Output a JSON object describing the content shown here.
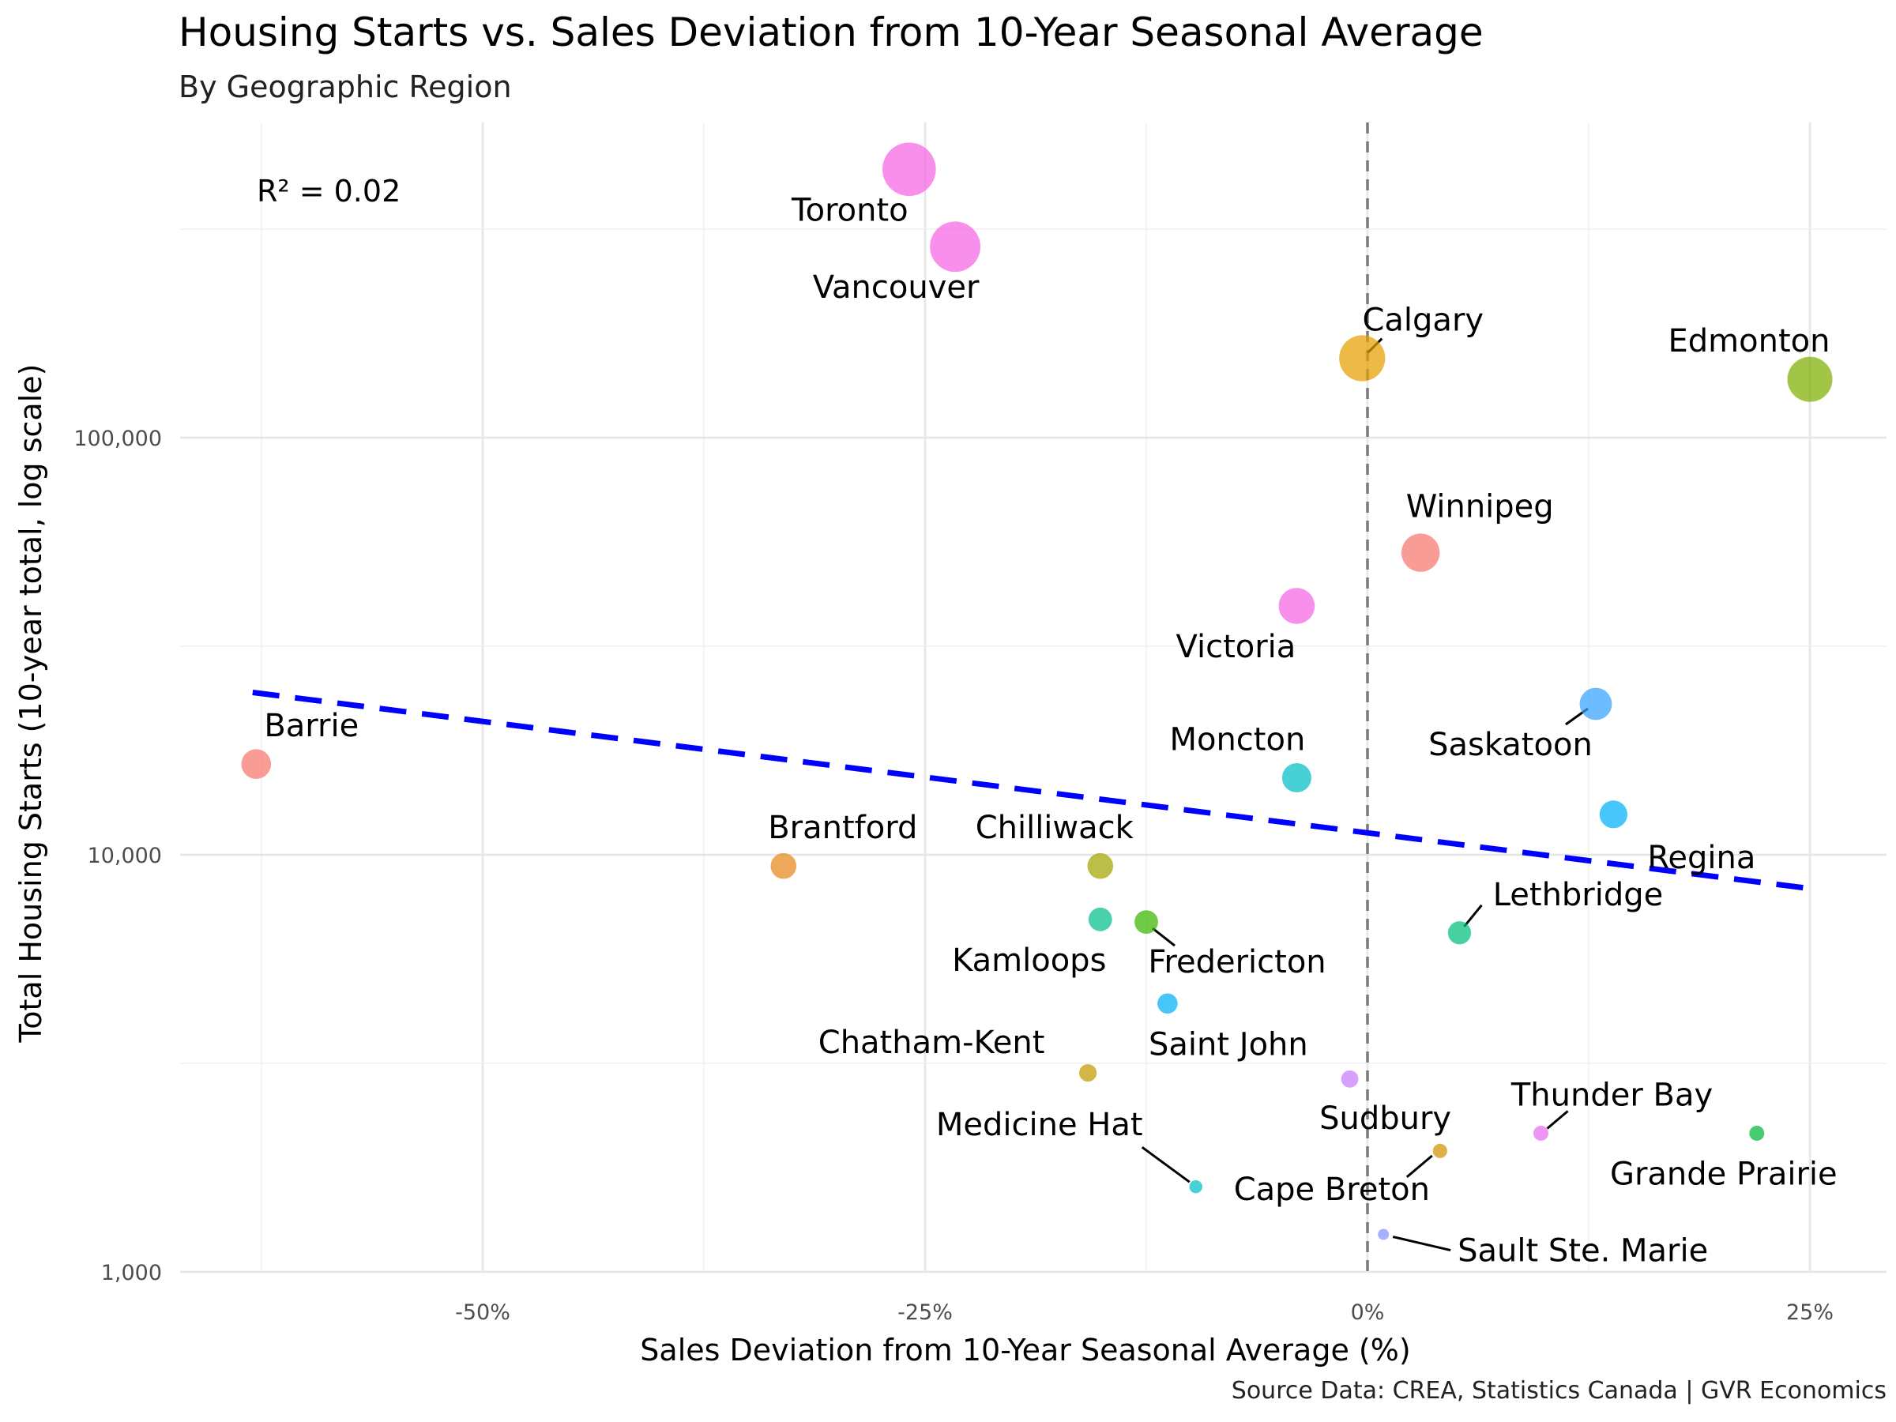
{
  "title": "Housing Starts vs. Sales Deviation from 10-Year Seasonal Average",
  "subtitle": "By Geographic Region",
  "caption": "Source Data: CREA, Statistics Canada | GVR Economics",
  "chart_data": {
    "type": "scatter",
    "title": "Housing Starts vs. Sales Deviation from 10-Year Seasonal Average",
    "subtitle": "By Geographic Region",
    "xlabel": "Sales Deviation from 10-Year Seasonal Average (%)",
    "ylabel": "Total Housing Starts (10-year total, log scale)",
    "x_scale": "linear",
    "y_scale": "log",
    "xlim": [
      -69,
      29
    ],
    "ylim": [
      900,
      600000
    ],
    "x_ticks": [
      -50,
      -25,
      0,
      25
    ],
    "x_tick_labels": [
      "-50%",
      "-25%",
      "0%",
      "25%"
    ],
    "y_ticks": [
      1000,
      10000,
      100000
    ],
    "y_tick_labels": [
      "1,000",
      "10,000",
      "100,000"
    ],
    "grid": true,
    "legend": "none",
    "reference_line": {
      "x": 0,
      "style": "dashed",
      "color": "#7a7a7a"
    },
    "trend_line": {
      "x": [
        -63,
        25
      ],
      "y": [
        24500,
        8300
      ],
      "style": "dashed",
      "color": "#0000ff"
    },
    "annotation": "R² = 0.02",
    "points": [
      {
        "label": "Toronto",
        "x": -25.9,
        "y": 440000,
        "color": "#f564e3"
      },
      {
        "label": "Vancouver",
        "x": -23.3,
        "y": 287000,
        "color": "#f564e3"
      },
      {
        "label": "Calgary",
        "x": -0.3,
        "y": 155000,
        "color": "#e69f00"
      },
      {
        "label": "Edmonton",
        "x": 25.0,
        "y": 138000,
        "color": "#7cae00"
      },
      {
        "label": "Winnipeg",
        "x": 3.0,
        "y": 53000,
        "color": "#f8766d"
      },
      {
        "label": "Victoria",
        "x": -4.0,
        "y": 39500,
        "color": "#f564e3"
      },
      {
        "label": "Saskatoon",
        "x": 12.9,
        "y": 23000,
        "color": "#35a2ff"
      },
      {
        "label": "Barrie",
        "x": -62.8,
        "y": 16500,
        "color": "#f8766d"
      },
      {
        "label": "Moncton",
        "x": -4.0,
        "y": 15300,
        "color": "#00bfc4"
      },
      {
        "label": "Regina",
        "x": 13.9,
        "y": 12500,
        "color": "#00b0f6"
      },
      {
        "label": "Brantford",
        "x": -33.0,
        "y": 9400,
        "color": "#e7861b"
      },
      {
        "label": "Chilliwack",
        "x": -15.1,
        "y": 9400,
        "color": "#a3a500"
      },
      {
        "label": "Kamloops",
        "x": -15.1,
        "y": 7000,
        "color": "#00c08b"
      },
      {
        "label": "Fredericton",
        "x": -12.5,
        "y": 6900,
        "color": "#39b600"
      },
      {
        "label": "Lethbridge",
        "x": 5.2,
        "y": 6500,
        "color": "#00bf7d"
      },
      {
        "label": "Saint John",
        "x": -11.3,
        "y": 4400,
        "color": "#00b0f6"
      },
      {
        "label": "Chatham-Kent",
        "x": -15.8,
        "y": 3000,
        "color": "#c09b00"
      },
      {
        "label": "Sudbury",
        "x": -1.0,
        "y": 2900,
        "color": "#c77cff"
      },
      {
        "label": "Thunder Bay",
        "x": 9.8,
        "y": 2150,
        "color": "#e76bf3"
      },
      {
        "label": "Grande Prairie",
        "x": 22.0,
        "y": 2150,
        "color": "#00ba38"
      },
      {
        "label": "Cape Breton",
        "x": 4.1,
        "y": 1950,
        "color": "#d39200"
      },
      {
        "label": "Medicine Hat",
        "x": -9.7,
        "y": 1600,
        "color": "#00bfc4"
      },
      {
        "label": "Sault Ste. Marie",
        "x": 0.9,
        "y": 1230,
        "color": "#8494ff"
      }
    ]
  }
}
